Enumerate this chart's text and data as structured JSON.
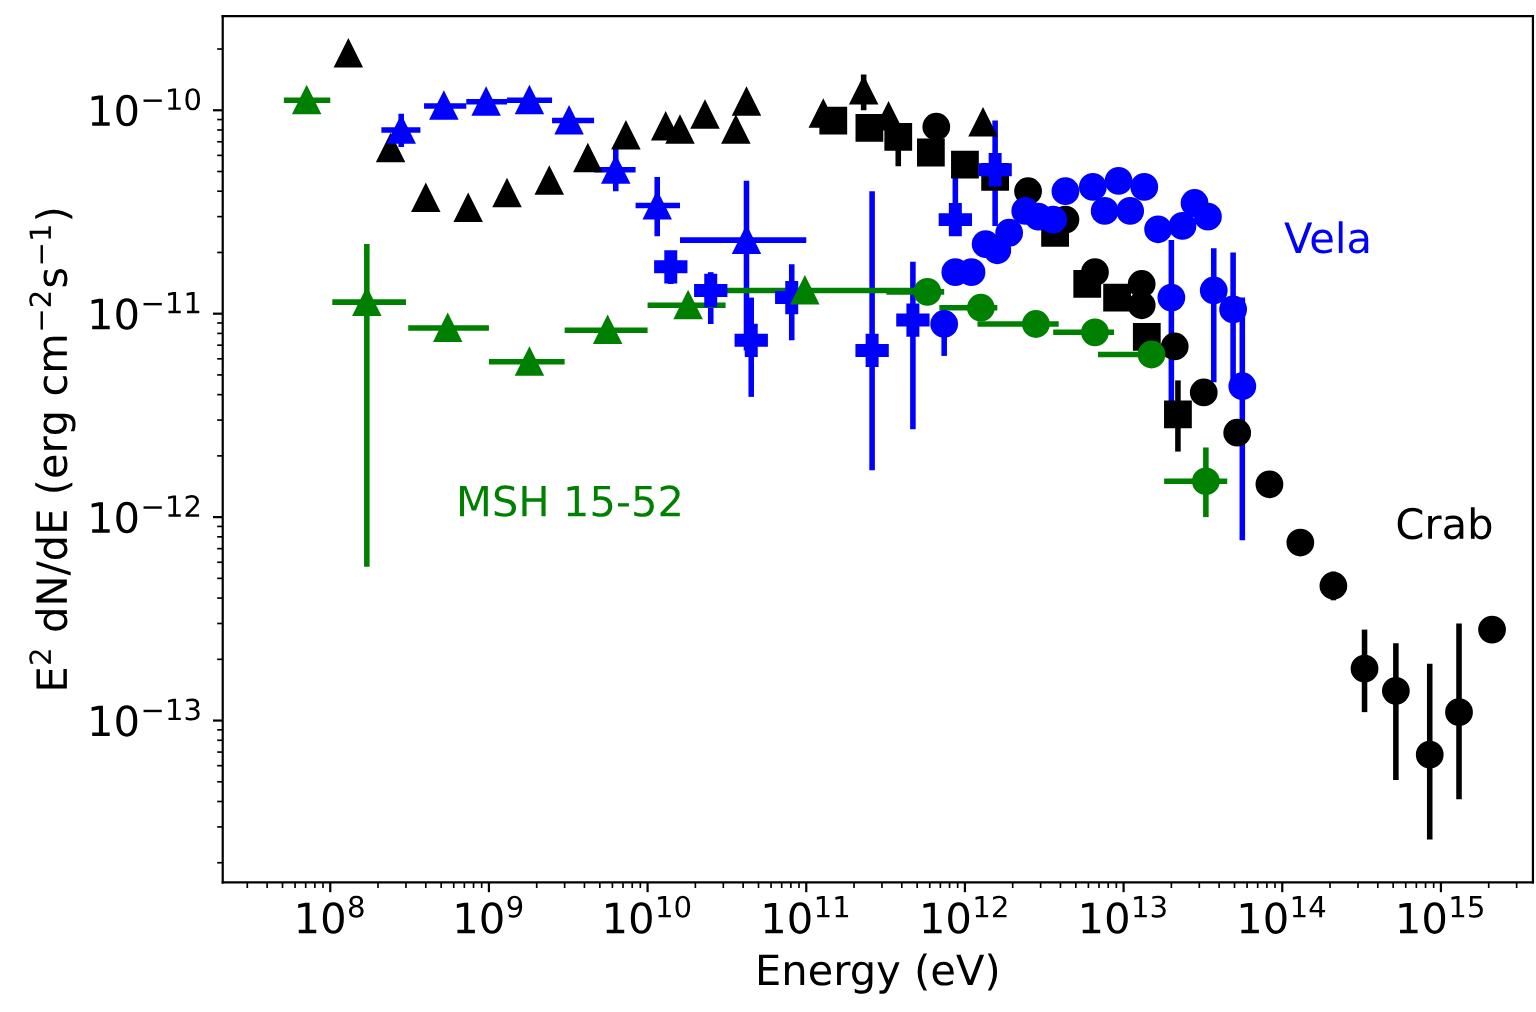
{
  "chart_data": {
    "type": "scatter",
    "log": "xy",
    "xlabel": "Energy (eV)",
    "ylabel": "E$^{2}$ dN/dE (erg cm$^{−2}$s$^{−1}$)",
    "xlim": [
      21000000.0,
      3800000000000000.0
    ],
    "ylim": [
      1.6e-14,
      2.9e-10
    ],
    "xticks": [
      {
        "value": 100000000.0,
        "label": "10$^{8}$"
      },
      {
        "value": 1000000000.0,
        "label": "10$^{9}$"
      },
      {
        "value": 10000000000.0,
        "label": "10$^{10}$"
      },
      {
        "value": 100000000000.0,
        "label": "10$^{11}$"
      },
      {
        "value": 1000000000000.0,
        "label": "10$^{12}$"
      },
      {
        "value": 10000000000000.0,
        "label": "10$^{13}$"
      },
      {
        "value": 100000000000000.0,
        "label": "10$^{14}$"
      },
      {
        "value": 1000000000000000.0,
        "label": "10$^{15}$"
      }
    ],
    "yticks": [
      {
        "value": 1e-13,
        "label": "10$^{−13}$"
      },
      {
        "value": 1e-12,
        "label": "10$^{−12}$"
      },
      {
        "value": 1e-11,
        "label": "10$^{−11}$"
      },
      {
        "value": 1e-10,
        "label": "10$^{−10}$"
      }
    ],
    "series": [
      {
        "color": "#000000",
        "marker": "triangle",
        "x": [
          130000000.0,
          240000000.0,
          400000000.0,
          740000000.0,
          1300000000.0,
          2400000000.0,
          4200000000.0,
          7300000000.0,
          13000000000.0,
          16000000000.0,
          23000000000.0,
          36000000000.0,
          42000000000.0,
          128000000000.0,
          230000000000.0,
          330000000000.0,
          1300000000000.0
        ],
        "values": [
          1.9e-10,
          6.5e-11,
          3.7e-11,
          3.3e-11,
          3.9e-11,
          4.5e-11,
          5.8e-11,
          7.5e-11,
          8.3e-11,
          8e-11,
          9.5e-11,
          8e-11,
          1.1e-10,
          9.6e-11,
          1.25e-10,
          9.3e-11,
          8.7e-11
        ],
        "errors": [
          null,
          null,
          null,
          null,
          null,
          null,
          null,
          null,
          null,
          null,
          null,
          null,
          null,
          null,
          [
            1e-10,
            1.5e-10
          ],
          null,
          null
        ]
      },
      {
        "color": "#000000",
        "marker": "square",
        "x": [
          148000000000.0,
          250000000000.0,
          380000000000.0,
          610000000000.0,
          1000000000000.0,
          1550000000000.0,
          3700000000000.0,
          5900000000000.0,
          9100000000000.0,
          14000000000000.0,
          22000000000000.0
        ],
        "values": [
          8.9e-11,
          8.2e-11,
          7.4e-11,
          6.2e-11,
          5.4e-11,
          4.7e-11,
          2.5e-11,
          1.4e-11,
          1.2e-11,
          7.7e-12,
          3.2e-12
        ],
        "errors": [
          null,
          null,
          [
            5.3e-11,
            8.5e-11
          ],
          null,
          null,
          null,
          null,
          null,
          null,
          null,
          [
            2.1e-12,
            4.7e-12
          ]
        ]
      },
      {
        "name": "Crab",
        "color": "#000000",
        "marker": "circle",
        "x": [
          660000000000.0,
          2500000000000.0,
          4300000000000.0,
          6600000000000.0,
          13000000000000.0,
          13000000000000.0,
          21000000000000.0,
          32000000000000.0,
          52000000000000.0,
          83000000000000.0,
          130000000000000.0,
          210000000000000.0,
          330000000000000.0,
          520000000000000.0,
          850000000000000.0,
          1300000000000000.0,
          2100000000000000.0
        ],
        "values": [
          8.3e-11,
          4e-11,
          2.9e-11,
          1.6e-11,
          1.4e-11,
          1.1e-11,
          6.9e-12,
          4.1e-12,
          2.6e-12,
          1.45e-12,
          7.5e-13,
          4.6e-13,
          1.8e-13,
          1.4e-13,
          6.8e-14,
          1.1e-13,
          2.8e-13
        ],
        "errors": [
          null,
          null,
          null,
          null,
          null,
          null,
          null,
          null,
          null,
          null,
          null,
          [
            3.9e-13,
            5.4e-13
          ],
          [
            1.1e-13,
            2.8e-13
          ],
          [
            5.1e-14,
            2.4e-13
          ],
          [
            2.6e-14,
            1.9e-13
          ],
          [
            4.1e-14,
            3e-13
          ],
          null
        ]
      },
      {
        "color": "#0000ff",
        "marker": "triangle",
        "x": [
          280000000.0,
          520000000.0,
          960000000.0,
          1800000000.0,
          3200000000.0,
          6300000000.0,
          11500000000.0,
          42000000000.0
        ],
        "values": [
          8e-11,
          1.05e-10,
          1.1e-10,
          1.12e-10,
          8.9e-11,
          5.1e-11,
          3.4e-11,
          2.3e-11
        ],
        "errors": [
          [
            6.6e-11,
            9.6e-11
          ],
          null,
          null,
          null,
          null,
          [
            4e-11,
            6.7e-11
          ],
          [
            2.4e-11,
            4.7e-11
          ],
          [
            6.6e-12,
            4.5e-11
          ]
        ],
        "xerrors": [
          [
            210000000.0,
            370000000.0
          ],
          [
            390000000.0,
            720000000.0
          ],
          [
            720000000.0,
            1300000000.0
          ],
          [
            1300000000.0,
            2500000000.0
          ],
          [
            2500000000.0,
            4600000000.0
          ],
          [
            4600000000.0,
            8400000000.0
          ],
          [
            8400000000.0,
            16000000000.0
          ],
          [
            16000000000.0,
            100000000000.0
          ]
        ]
      },
      {
        "color": "#0000ff",
        "marker": "cross",
        "x": [
          14000000000.0,
          25000000000.0,
          45000000000.0,
          81000000000.0,
          260000000000.0,
          470000000000.0,
          870000000000.0,
          1550000000000.0
        ],
        "values": [
          1.7e-11,
          1.3e-11,
          7.4e-12,
          1.2e-11,
          6.6e-12,
          9.3e-12,
          2.9e-11,
          5.1e-11
        ],
        "errors": [
          [
            1.4e-11,
            2e-11
          ],
          [
            8.9e-12,
            1.6e-11
          ],
          [
            3.9e-12,
            1.2e-11
          ],
          [
            7.4e-12,
            1.75e-11
          ],
          [
            1.7e-12,
            4e-11
          ],
          [
            2.7e-12,
            1.8e-11
          ],
          [
            2.9e-11,
            4.7e-11
          ],
          [
            2.7e-11,
            8.9e-11
          ]
        ]
      },
      {
        "name": "Vela",
        "color": "#0000ff",
        "marker": "circle",
        "x": [
          740000000000.0,
          870000000000.0,
          1100000000000.0,
          1350000000000.0,
          1600000000000.0,
          1900000000000.0,
          2400000000000.0,
          2900000000000.0,
          3600000000000.0,
          4300000000000.0,
          6400000000000.0,
          7600000000000.0,
          9300000000000.0,
          11000000000000.0,
          13500000000000.0,
          16500000000000.0,
          20000000000000.0,
          23500000000000.0,
          28000000000000.0,
          34000000000000.0,
          37000000000000.0,
          49000000000000.0,
          56000000000000.0
        ],
        "values": [
          8.9e-12,
          1.6e-11,
          1.6e-11,
          2.2e-11,
          2.05e-11,
          2.5e-11,
          3.2e-11,
          3e-11,
          2.9e-11,
          4e-11,
          4.2e-11,
          3.2e-11,
          4.5e-11,
          3.2e-11,
          4.2e-11,
          2.6e-11,
          1.2e-11,
          2.7e-11,
          3.5e-11,
          3e-11,
          1.3e-11,
          1.05e-11,
          4.4e-12
        ],
        "errors": [
          [
            6.2e-12,
            1.05e-11
          ],
          null,
          null,
          null,
          null,
          null,
          null,
          null,
          null,
          null,
          null,
          null,
          null,
          null,
          null,
          null,
          [
            3.7e-12,
            2.3e-11
          ],
          null,
          [
            3e-11,
            4e-11
          ],
          null,
          [
            4.6e-12,
            2.1e-11
          ],
          [
            4.1e-12,
            2e-11
          ],
          [
            7.7e-13,
            1.2e-11
          ]
        ]
      },
      {
        "name": "MSH 15-52",
        "color": "#008000",
        "marker": "triangle",
        "x": [
          71000000.0,
          170000000.0,
          550000000.0,
          1800000000.0,
          5600000000.0,
          18000000000.0,
          98000000000.0
        ],
        "values": [
          1.12e-10,
          1.14e-11,
          8.5e-12,
          5.8e-12,
          8.3e-12,
          1.1e-11,
          1.3e-11
        ],
        "errors": [
          null,
          [
            5.7e-13,
            2.2e-11
          ],
          null,
          null,
          null,
          null,
          null
        ],
        "xerrors": [
          [
            51000000.0,
            100000000.0
          ],
          [
            103000000.0,
            300000000.0
          ],
          [
            310000000.0,
            1000000000.0
          ],
          [
            1000000000.0,
            3000000000.0
          ],
          [
            3000000000.0,
            10000000000.0
          ],
          [
            10000000000.0,
            31000000000.0
          ],
          [
            31000000000.0,
            690000000000.0
          ]
        ]
      },
      {
        "color": "#008000",
        "marker": "circle",
        "x": [
          580000000000.0,
          1260000000000.0,
          2800000000000.0,
          6600000000000.0,
          15000000000000.0,
          33000000000000.0
        ],
        "values": [
          1.28e-11,
          1.07e-11,
          8.9e-12,
          8.1e-12,
          6.3e-12,
          1.5e-12
        ],
        "errors": [
          null,
          null,
          null,
          null,
          null,
          [
            1e-12,
            2.2e-12
          ]
        ],
        "xerrors": [
          [
            320000000000.0,
            740000000000.0
          ],
          [
            690000000000.0,
            1600000000000.0
          ],
          [
            1200000000000.0,
            3900000000000.0
          ],
          [
            3600000000000.0,
            8700000000000.0
          ],
          [
            6900000000000.0,
            22000000000000.0
          ],
          [
            18000000000000.0,
            45000000000000.0
          ]
        ]
      }
    ]
  }
}
